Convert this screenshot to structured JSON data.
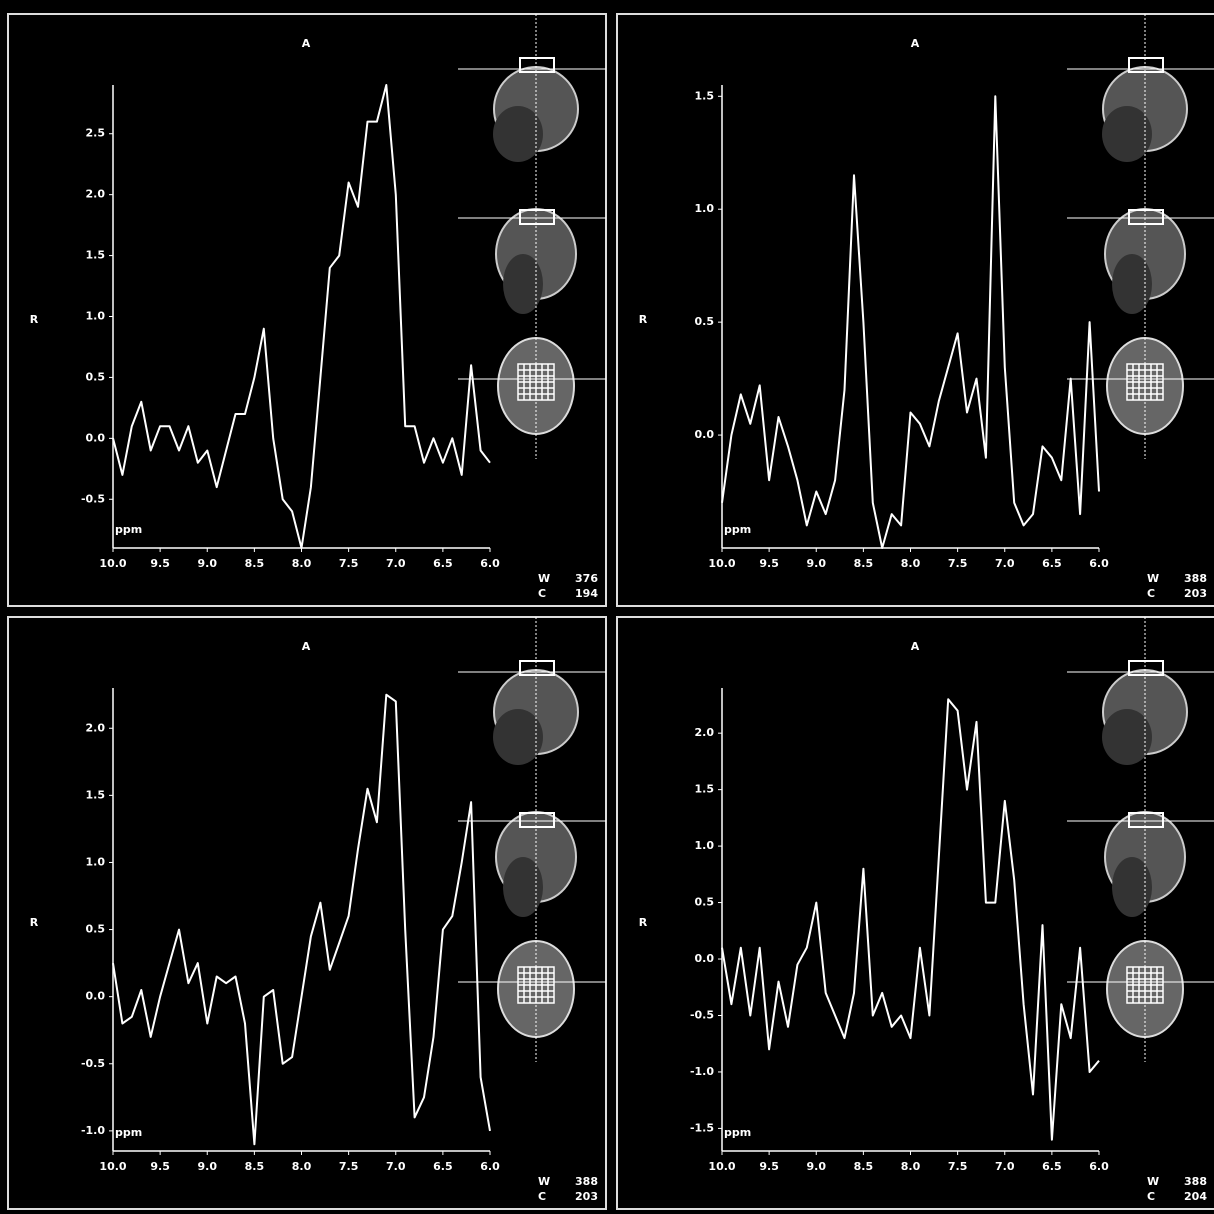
{
  "chart_data": [
    {
      "type": "line",
      "title": "A",
      "ylabel": "R",
      "xlabel": "ppm",
      "color": "#ffffff",
      "x": [
        10.0,
        9.9,
        9.8,
        9.7,
        9.6,
        9.5,
        9.4,
        9.3,
        9.2,
        9.1,
        9.0,
        8.9,
        8.8,
        8.7,
        8.6,
        8.5,
        8.4,
        8.3,
        8.2,
        8.1,
        8.0,
        7.9,
        7.8,
        7.7,
        7.6,
        7.5,
        7.4,
        7.3,
        7.2,
        7.1,
        7.0,
        6.9,
        6.8,
        6.7,
        6.6,
        6.5,
        6.4,
        6.3,
        6.2,
        6.1,
        6.0
      ],
      "values": [
        0.0,
        -0.3,
        0.1,
        0.3,
        -0.1,
        0.1,
        0.1,
        -0.1,
        0.1,
        -0.2,
        -0.1,
        -0.4,
        -0.1,
        0.2,
        0.2,
        0.5,
        0.9,
        0.0,
        -0.5,
        -0.6,
        -0.9,
        -0.4,
        0.5,
        1.4,
        1.5,
        2.1,
        1.9,
        2.6,
        2.6,
        2.9,
        2.0,
        0.1,
        0.1,
        -0.2,
        0.0,
        -0.2,
        0.0,
        -0.3,
        0.6,
        -0.1,
        -0.2
      ],
      "xlim": [
        10,
        6
      ],
      "ylim": [
        -0.9,
        2.9
      ],
      "xticks": [
        {
          "value": 10,
          "label": "10.0"
        },
        9.5,
        {
          "value": 9,
          "label": "9.0"
        },
        8.5,
        {
          "value": 8,
          "label": "8.0"
        },
        7.5,
        {
          "value": 7,
          "label": "7.0"
        },
        6.5,
        {
          "value": 6,
          "label": "6.0"
        }
      ],
      "yticks": [
        -0.5,
        {
          "value": 0,
          "label": "0.0"
        },
        0.5,
        {
          "value": 1,
          "label": "1.0"
        },
        1.5,
        {
          "value": 2,
          "label": "2.0"
        },
        2.5
      ],
      "window": {
        "label": "W",
        "value": 376
      },
      "center": {
        "label": "C",
        "value": 194
      }
    },
    {
      "type": "line",
      "title": "A",
      "ylabel": "R",
      "xlabel": "ppm",
      "color": "#ffffff",
      "x": [
        10.0,
        9.9,
        9.8,
        9.7,
        9.6,
        9.5,
        9.4,
        9.3,
        9.2,
        9.1,
        9.0,
        8.9,
        8.8,
        8.7,
        8.6,
        8.5,
        8.4,
        8.3,
        8.2,
        8.1,
        8.0,
        7.9,
        7.8,
        7.7,
        7.6,
        7.5,
        7.4,
        7.3,
        7.2,
        7.1,
        7.0,
        6.9,
        6.8,
        6.7,
        6.6,
        6.5,
        6.4,
        6.3,
        6.2,
        6.1,
        6.0
      ],
      "values": [
        -0.3,
        0.0,
        0.18,
        0.05,
        0.22,
        -0.2,
        0.08,
        -0.05,
        -0.2,
        -0.4,
        -0.25,
        -0.35,
        -0.2,
        0.2,
        1.15,
        0.5,
        -0.3,
        -0.5,
        -0.35,
        -0.4,
        0.1,
        0.05,
        -0.05,
        0.15,
        0.3,
        0.45,
        0.1,
        0.25,
        -0.1,
        1.5,
        0.3,
        -0.3,
        -0.4,
        -0.35,
        -0.05,
        -0.1,
        -0.2,
        0.25,
        -0.35,
        0.5,
        -0.25
      ],
      "xlim": [
        10,
        6
      ],
      "ylim": [
        -0.5,
        1.55
      ],
      "xticks": [
        {
          "value": 10,
          "label": "10.0"
        },
        9.5,
        {
          "value": 9,
          "label": "9.0"
        },
        8.5,
        {
          "value": 8,
          "label": "8.0"
        },
        7.5,
        {
          "value": 7,
          "label": "7.0"
        },
        6.5,
        {
          "value": 6,
          "label": "6.0"
        }
      ],
      "yticks": [
        {
          "value": 0,
          "label": "0.0"
        },
        0.5,
        {
          "value": 1,
          "label": "1.0"
        },
        1.5
      ],
      "window": {
        "label": "W",
        "value": 388
      },
      "center": {
        "label": "C",
        "value": 203
      }
    },
    {
      "type": "line",
      "title": "A",
      "ylabel": "R",
      "xlabel": "ppm",
      "color": "#ffffff",
      "x": [
        10.0,
        9.9,
        9.8,
        9.7,
        9.6,
        9.5,
        9.4,
        9.3,
        9.2,
        9.1,
        9.0,
        8.9,
        8.8,
        8.7,
        8.6,
        8.5,
        8.4,
        8.3,
        8.2,
        8.1,
        8.0,
        7.9,
        7.8,
        7.7,
        7.6,
        7.5,
        7.4,
        7.3,
        7.2,
        7.1,
        7.0,
        6.9,
        6.8,
        6.7,
        6.6,
        6.5,
        6.4,
        6.3,
        6.2,
        6.1,
        6.0
      ],
      "values": [
        0.25,
        -0.2,
        -0.15,
        0.05,
        -0.3,
        0.0,
        0.25,
        0.5,
        0.1,
        0.25,
        -0.2,
        0.15,
        0.1,
        0.15,
        -0.2,
        -1.1,
        0.0,
        0.05,
        -0.5,
        -0.45,
        0.0,
        0.45,
        0.7,
        0.2,
        0.4,
        0.6,
        1.1,
        1.55,
        1.3,
        2.25,
        2.2,
        0.5,
        -0.9,
        -0.75,
        -0.3,
        0.5,
        0.6,
        1.0,
        1.45,
        -0.6,
        -1.0
      ],
      "xlim": [
        10,
        6
      ],
      "ylim": [
        -1.15,
        2.3
      ],
      "xticks": [
        {
          "value": 10,
          "label": "10.0"
        },
        9.5,
        {
          "value": 9,
          "label": "9.0"
        },
        8.5,
        {
          "value": 8,
          "label": "8.0"
        },
        7.5,
        {
          "value": 7,
          "label": "7.0"
        },
        6.5,
        {
          "value": 6,
          "label": "6.0"
        }
      ],
      "yticks": [
        {
          "value": -1,
          "label": "-1.0"
        },
        -0.5,
        {
          "value": 0,
          "label": "0.0"
        },
        0.5,
        {
          "value": 1,
          "label": "1.0"
        },
        1.5,
        {
          "value": 2,
          "label": "2.0"
        }
      ],
      "window": {
        "label": "W",
        "value": 388
      },
      "center": {
        "label": "C",
        "value": 203
      }
    },
    {
      "type": "line",
      "title": "A",
      "ylabel": "R",
      "xlabel": "ppm",
      "color": "#ffffff",
      "x": [
        10.0,
        9.9,
        9.8,
        9.7,
        9.6,
        9.5,
        9.4,
        9.3,
        9.2,
        9.1,
        9.0,
        8.9,
        8.8,
        8.7,
        8.6,
        8.5,
        8.4,
        8.3,
        8.2,
        8.1,
        8.0,
        7.9,
        7.8,
        7.7,
        7.6,
        7.5,
        7.4,
        7.3,
        7.2,
        7.1,
        7.0,
        6.9,
        6.8,
        6.7,
        6.6,
        6.5,
        6.4,
        6.3,
        6.2,
        6.1,
        6.0
      ],
      "values": [
        0.1,
        -0.4,
        0.1,
        -0.5,
        0.1,
        -0.8,
        -0.2,
        -0.6,
        -0.05,
        0.1,
        0.5,
        -0.3,
        -0.5,
        -0.7,
        -0.3,
        0.8,
        -0.5,
        -0.3,
        -0.6,
        -0.5,
        -0.7,
        0.1,
        -0.5,
        0.9,
        2.3,
        2.2,
        1.5,
        2.1,
        0.5,
        0.5,
        1.4,
        0.7,
        -0.4,
        -1.2,
        0.3,
        -1.6,
        -0.4,
        -0.7,
        0.1,
        -1.0,
        -0.9
      ],
      "xlim": [
        10,
        6
      ],
      "ylim": [
        -1.7,
        2.4
      ],
      "xticks": [
        {
          "value": 10,
          "label": "10.0"
        },
        9.5,
        {
          "value": 9,
          "label": "9.0"
        },
        8.5,
        {
          "value": 8,
          "label": "8.0"
        },
        7.5,
        {
          "value": 7,
          "label": "7.0"
        },
        6.5,
        {
          "value": 6,
          "label": "6.0"
        }
      ],
      "yticks": [
        -1.5,
        {
          "value": -1,
          "label": "-1.0"
        },
        -0.5,
        {
          "value": 0,
          "label": "0.0"
        },
        0.5,
        {
          "value": 1,
          "label": "1.0"
        },
        1.5,
        {
          "value": 2,
          "label": "2.0"
        }
      ],
      "window": {
        "label": "W",
        "value": 388
      },
      "center": {
        "label": "C",
        "value": 204
      }
    }
  ]
}
